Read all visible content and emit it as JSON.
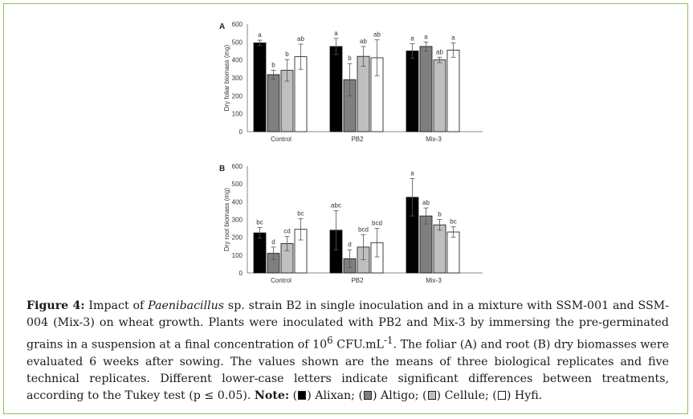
{
  "chart_data": [
    {
      "type": "bar",
      "panel_label": "A",
      "ylabel": "Dry foliar biomass (mg)",
      "ylim": [
        0,
        600
      ],
      "yticks": [
        0,
        100,
        200,
        300,
        400,
        500,
        600
      ],
      "categories": [
        "Control",
        "PB2",
        "Mix-3"
      ],
      "series": [
        {
          "name": "Alixan",
          "color": "#000000",
          "values": [
            495,
            475,
            450
          ],
          "errors": [
            15,
            45,
            40
          ],
          "letters": [
            "a",
            "a",
            "a"
          ]
        },
        {
          "name": "Altigo",
          "color": "#7f7f7f",
          "values": [
            318,
            290,
            475
          ],
          "errors": [
            25,
            90,
            25
          ],
          "letters": [
            "b",
            "b",
            "a"
          ]
        },
        {
          "name": "Cellule",
          "color": "#bfbfbf",
          "values": [
            342,
            420,
            400
          ],
          "errors": [
            60,
            55,
            15
          ],
          "letters": [
            "b",
            "ab",
            "ab"
          ]
        },
        {
          "name": "Hyfi",
          "color": "#ffffff",
          "values": [
            418,
            412,
            455
          ],
          "errors": [
            70,
            100,
            40
          ],
          "letters": [
            "ab",
            "ab",
            "a"
          ]
        }
      ]
    },
    {
      "type": "bar",
      "panel_label": "B",
      "ylabel": "Dry root biomass (mg)",
      "ylim": [
        0,
        600
      ],
      "yticks": [
        0,
        100,
        200,
        300,
        400,
        500,
        600
      ],
      "categories": [
        "Control",
        "PB2",
        "Mix-3"
      ],
      "series": [
        {
          "name": "Alixan",
          "color": "#000000",
          "values": [
            225,
            240,
            425
          ],
          "errors": [
            30,
            110,
            105
          ],
          "letters": [
            "bc",
            "abc",
            "a"
          ]
        },
        {
          "name": "Altigo",
          "color": "#7f7f7f",
          "values": [
            110,
            80,
            320
          ],
          "errors": [
            35,
            50,
            45
          ],
          "letters": [
            "d",
            "d",
            "ab"
          ]
        },
        {
          "name": "Cellule",
          "color": "#bfbfbf",
          "values": [
            165,
            145,
            270
          ],
          "errors": [
            40,
            70,
            30
          ],
          "letters": [
            "cd",
            "bcd",
            "b"
          ]
        },
        {
          "name": "Hyfi",
          "color": "#ffffff",
          "values": [
            245,
            170,
            230
          ],
          "errors": [
            60,
            80,
            30
          ],
          "letters": [
            "bc",
            "bcd",
            "bc"
          ]
        }
      ]
    }
  ],
  "caption": {
    "label": "Figure 4:",
    "text_1": " Impact of ",
    "italic_1": "Paenibacillus",
    "text_2": " sp. strain B2 in single inoculation and in a mixture with SSM-001 and SSM-004 (Mix-3) on wheat growth. Plants were inoculated with PB2 and Mix-3 by immersing the pre-germinated grains in a suspension at a final concentration of 10",
    "sup_1": "6",
    "text_3": " CFU.mL",
    "sup_2": "-1",
    "text_4": ". The foliar (A) and root (B) dry biomasses were evaluated 6 weeks after sowing. The values shown are the means of three biological replicates and five technical replicates. Different lower-case letters indicate significant differences between treatments, according to the Tukey test (p ≤ 0.05). ",
    "note_label": "Note:",
    "note_items": [
      "Alixan;",
      "Altigo;",
      "Cellule;",
      "Hyfi."
    ]
  }
}
